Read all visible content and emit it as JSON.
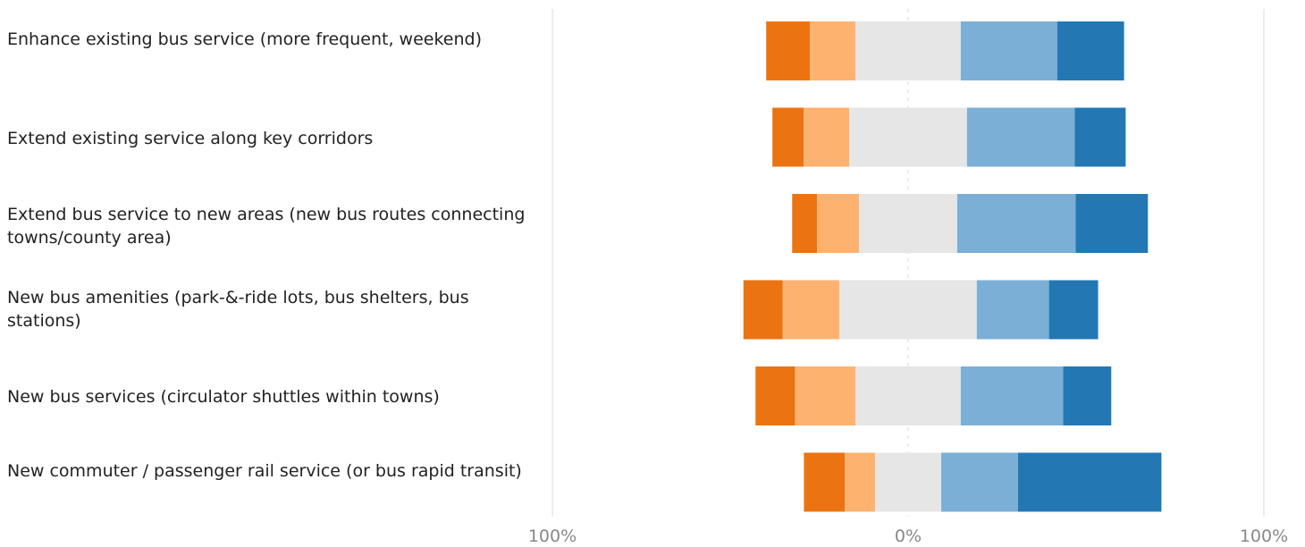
{
  "chart_data": {
    "type": "bar",
    "subtype": "diverging-stacked-horizontal",
    "title": "",
    "xlabel": "",
    "ylabel": "",
    "xlim": [
      -100,
      100
    ],
    "x_ticks": [
      {
        "value": -100,
        "label": "100%"
      },
      {
        "value": 0,
        "label": "0%"
      },
      {
        "value": 100,
        "label": "100%"
      }
    ],
    "grid": true,
    "legend": "none",
    "segment_colors": [
      "#ec7311",
      "#fdb26f",
      "#e6e6e6",
      "#7bafd5",
      "#2378b4"
    ],
    "categories": [
      "Enhance existing bus service (more frequent, weekend)",
      "Extend existing service along key corridors",
      "Extend bus service to new areas (new bus routes connecting towns/county area)",
      "New bus amenities (park-&-ride lots, bus shelters, bus stations)",
      "New bus services (circulator shuttles within towns)",
      "New commuter / passenger rail service (or bus rapid transit)"
    ],
    "segments": [
      [
        12.3,
        12.8,
        29.6,
        27.1,
        18.8
      ],
      [
        8.8,
        12.8,
        33.1,
        30.3,
        14.3
      ],
      [
        7.0,
        11.8,
        27.6,
        33.3,
        20.3
      ],
      [
        11.0,
        16.0,
        38.6,
        20.3,
        13.8
      ],
      [
        11.1,
        17.0,
        29.6,
        28.8,
        13.5
      ],
      [
        11.5,
        8.5,
        18.6,
        21.6,
        40.3
      ]
    ]
  }
}
